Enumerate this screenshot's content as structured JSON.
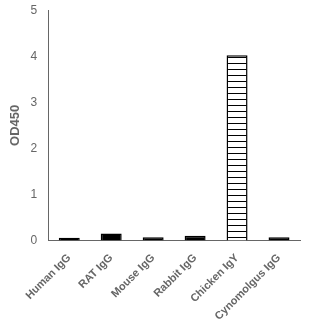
{
  "chart_data": {
    "type": "bar",
    "categories": [
      "Human IgG",
      "RAT IgG",
      "Mouse IgG",
      "Rabbit IgG",
      "Chicken IgY",
      "Cynomolgus IgG"
    ],
    "values": [
      0.06,
      0.15,
      0.07,
      0.1,
      4.02,
      0.07
    ],
    "colors": [
      "black",
      "black",
      "black",
      "black",
      "white",
      "black"
    ],
    "ylabel": "OD450",
    "ylim": [
      0,
      5
    ],
    "yticks": [
      0,
      1,
      2,
      3,
      4,
      5
    ],
    "grid": false
  }
}
